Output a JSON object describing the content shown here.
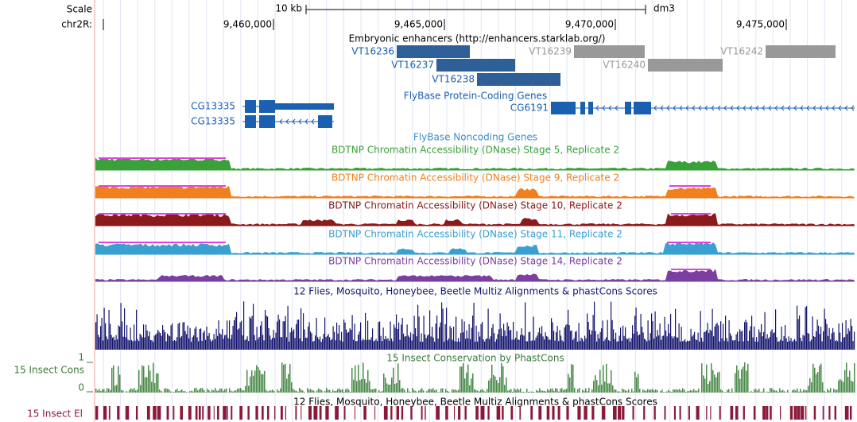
{
  "header": {
    "scale": "Scale",
    "scale_bar": "10 kb",
    "assembly": "dm3",
    "chrom": "chr2R:",
    "ticks": [
      "9,460,000",
      "9,465,000",
      "9,470,000",
      "9,475,000"
    ]
  },
  "enhancers": {
    "title": "Embryonic enhancers (http://enhancers.starklab.org/)",
    "items": [
      "VT16236",
      "VT16237",
      "VT16238",
      "VT16239",
      "VT16240",
      "VT16242"
    ]
  },
  "coding_genes": {
    "title": "FlyBase Protein-Coding Genes",
    "genes": [
      "CG13335",
      "CG13335",
      "CG6191"
    ]
  },
  "noncoding_genes": {
    "title": "FlyBase Noncoding Genes"
  },
  "dnase_tracks": [
    "BDTNP Chromatin Accessibility (DNase) Stage 5, Replicate 2",
    "BDTNP Chromatin Accessibility (DNase) Stage 9, Replicate 2",
    "BDTNP Chromatin Accessibility (DNase) Stage 10, Replicate 2",
    "BDTNP Chromatin Accessibility (DNase) Stage 11, Replicate 2",
    "BDTNP Chromatin Accessibility (DNase) Stage 14, Replicate 2"
  ],
  "multiz": {
    "title": "12 Flies, Mosquito, Honeybee, Beetle Multiz Alignments & phastCons Scores"
  },
  "phastcons": {
    "title": "15 Insect Conservation by PhastCons",
    "label": "15 Insect Cons",
    "max": "1",
    "min": "0"
  },
  "elements": {
    "title": "12 Flies, Mosquito, Honeybee, Beetle Multiz Alignments & phastCons Scores",
    "label": "15 Insect El"
  }
}
